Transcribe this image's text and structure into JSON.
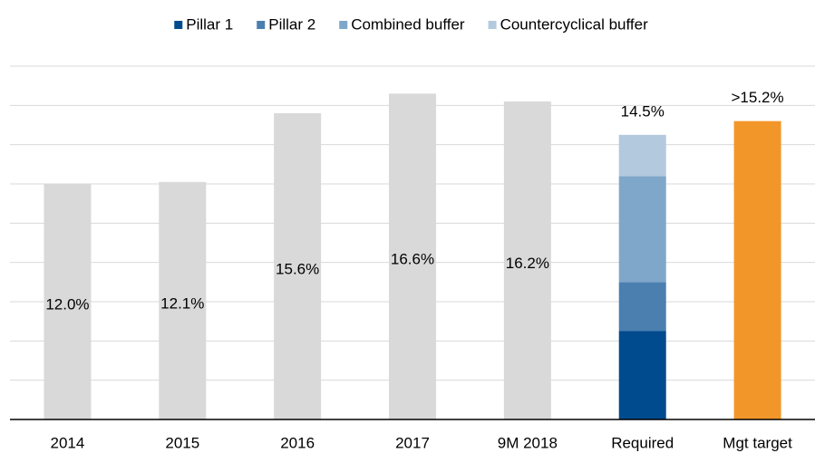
{
  "chart_data": {
    "type": "bar",
    "categories": [
      "2014",
      "2015",
      "2016",
      "2017",
      "9M 2018",
      "Required",
      "Mgt target"
    ],
    "values": [
      12.0,
      12.1,
      15.6,
      16.6,
      16.2,
      null,
      15.2
    ],
    "value_labels": [
      "12.0%",
      "12.1%",
      "15.6%",
      "16.6%",
      "16.2%",
      null,
      ">15.2%"
    ],
    "colors": [
      "#d9d9d9",
      "#d9d9d9",
      "#d9d9d9",
      "#d9d9d9",
      "#d9d9d9",
      null,
      "#f39629"
    ],
    "series": [
      {
        "name": "Pillar 1",
        "color": "#004b8d",
        "values": [
          null,
          null,
          null,
          null,
          null,
          4.5,
          null
        ]
      },
      {
        "name": "Pillar 2",
        "color": "#4a7fb0",
        "values": [
          null,
          null,
          null,
          null,
          null,
          2.5,
          null
        ]
      },
      {
        "name": "Combined buffer",
        "color": "#7fa7ca",
        "values": [
          null,
          null,
          null,
          null,
          null,
          5.4,
          null
        ]
      },
      {
        "name": "Countercyclical buffer",
        "color": "#b3c9de",
        "values": [
          null,
          null,
          null,
          null,
          null,
          2.1,
          null
        ]
      }
    ],
    "stack_totals": [
      null,
      null,
      null,
      null,
      null,
      14.5,
      null
    ],
    "stack_total_labels": [
      null,
      null,
      null,
      null,
      null,
      "14.5%",
      null
    ],
    "ylim": [
      0,
      18
    ],
    "yticks": [
      0,
      2,
      4,
      6,
      8,
      10,
      12,
      14,
      16,
      18
    ],
    "grid": true
  }
}
